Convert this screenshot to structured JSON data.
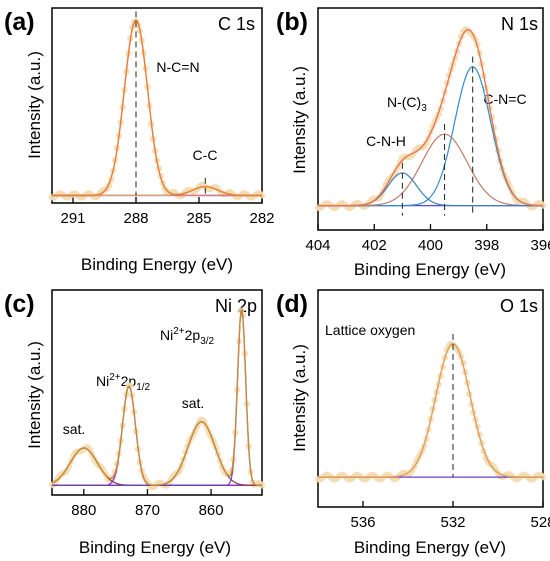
{
  "chart_data": [
    {
      "panel": "(a)",
      "type": "line",
      "title": "C 1s",
      "xlabel": "Binding Energy (eV)",
      "ylabel": "Intensity (a.u.)",
      "xlim": [
        292,
        282
      ],
      "x_reversed": true,
      "x_ticks": [
        291,
        288,
        285,
        282
      ],
      "y_ticks_shown": false,
      "ylim": [
        0,
        1.0
      ],
      "background_level": 0.02,
      "peaks": [
        {
          "label": "N-C=N",
          "center": 288.0,
          "height": 0.99,
          "fwhm": 1.3,
          "color": "#e07a6e"
        },
        {
          "label": "C-C",
          "center": 284.7,
          "height": 0.05,
          "fwhm": 1.4,
          "color": "#e0a060"
        }
      ],
      "annotations": [
        {
          "text": "N-C=N",
          "x": 288.0
        },
        {
          "text": "C-C",
          "x": 284.7
        }
      ],
      "colors": {
        "data_points": "#f2dcb0",
        "envelope": "#e8803a",
        "baseline": "#8b3dd1"
      }
    },
    {
      "panel": "(b)",
      "type": "line",
      "title": "N 1s",
      "xlabel": "Binding Energy (eV)",
      "ylabel": "Intensity (a.u.)",
      "xlim": [
        404,
        396
      ],
      "x_reversed": true,
      "x_ticks": [
        404,
        402,
        400,
        398,
        396
      ],
      "y_ticks_shown": false,
      "ylim": [
        0,
        1.0
      ],
      "background_level": 0.1,
      "peaks": [
        {
          "label": "C-N=C",
          "center": 398.5,
          "height": 0.68,
          "fwhm": 1.5,
          "color": "#2f8fc9"
        },
        {
          "label": "N-(C)3",
          "center": 399.5,
          "height": 0.35,
          "fwhm": 1.9,
          "color": "#c47a6a"
        },
        {
          "label": "C-N-H",
          "center": 401.0,
          "height": 0.16,
          "fwhm": 1.2,
          "color": "#3a7fc0"
        }
      ],
      "annotations": [
        {
          "text": "C-N=C",
          "x": 398.5
        },
        {
          "text": "N-(C)",
          "sub": "3",
          "x": 399.5
        },
        {
          "text": "C-N-H",
          "x": 401.0
        }
      ],
      "colors": {
        "data_points": "#f2dcb0",
        "envelope": "#e87850",
        "baseline": "#5a46d8"
      }
    },
    {
      "panel": "(c)",
      "type": "line",
      "title": "Ni 2p",
      "xlabel": "Binding Energy (eV)",
      "ylabel": "Intensity (a.u.)",
      "xlim": [
        885,
        852
      ],
      "x_reversed": true,
      "x_ticks": [
        880,
        870,
        860
      ],
      "y_ticks_shown": false,
      "ylim": [
        0,
        1.0
      ],
      "background_level": 0.03,
      "peaks": [
        {
          "label": "sat.",
          "center": 880.0,
          "height": 0.2,
          "fwhm": 5.0,
          "color": "#8b3a3a"
        },
        {
          "label": "Ni2+2p1/2",
          "center": 872.9,
          "height": 0.53,
          "fwhm": 2.4,
          "color": "#8a2be2"
        },
        {
          "label": "sat.",
          "center": 861.5,
          "height": 0.34,
          "fwhm": 5.0,
          "color": "#8b3a3a"
        },
        {
          "label": "Ni2+2p3/2",
          "center": 855.2,
          "height": 0.94,
          "fwhm": 1.5,
          "color": "#6a3fc0"
        }
      ],
      "annotations": [
        {
          "text": "sat.",
          "x": 881.5
        },
        {
          "text": "Ni",
          "sup": "2+",
          "mid": "2p",
          "sub": "1/2",
          "x": 873.0
        },
        {
          "text": "sat.",
          "x": 863.0
        },
        {
          "text": "Ni",
          "sup": "2+",
          "mid": "2p",
          "sub": "3/2",
          "x": 858.0
        }
      ],
      "colors": {
        "data_points": "#f2dcb0",
        "envelope": "#c58a3a",
        "baseline": "#8b3a3a"
      }
    },
    {
      "panel": "(d)",
      "type": "line",
      "title": "O 1s",
      "xlabel": "Binding Energy (eV)",
      "ylabel": "Intensity (a.u.)",
      "xlim": [
        538,
        528
      ],
      "x_reversed": true,
      "x_ticks": [
        536,
        532,
        528
      ],
      "y_ticks_shown": false,
      "ylim": [
        0,
        1.0
      ],
      "background_level": 0.13,
      "peaks": [
        {
          "label": "Lattice oxygen",
          "center": 532.0,
          "height": 0.67,
          "fwhm": 1.8,
          "color": "#e0a060"
        }
      ],
      "annotations": [
        {
          "text": "Lattice oxygen",
          "x": 532.0
        }
      ],
      "colors": {
        "data_points": "#f2dcb0",
        "envelope": "#e0a060",
        "baseline": "#6a3fd8"
      }
    }
  ]
}
